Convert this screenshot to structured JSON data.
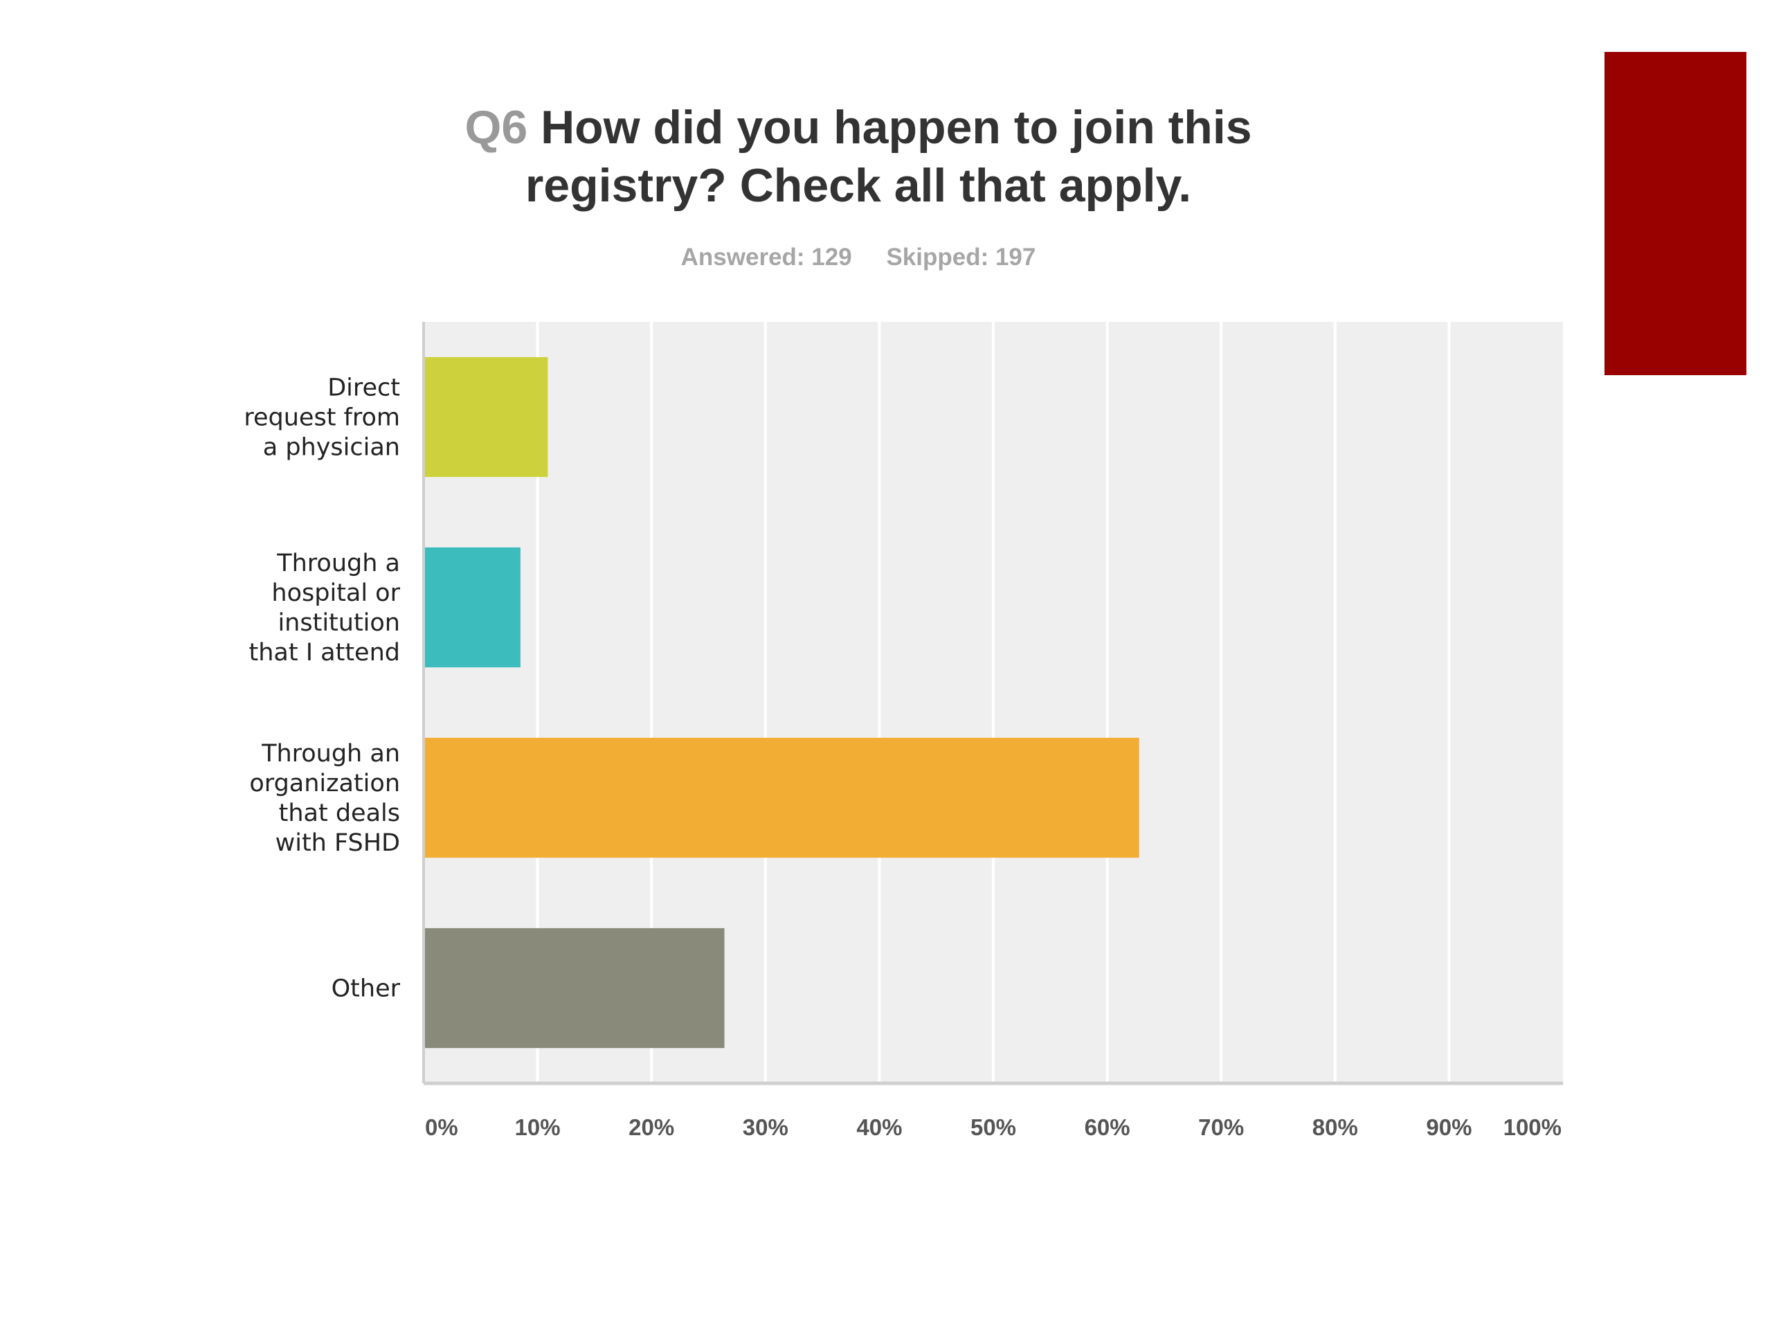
{
  "accent_color": "#990000",
  "chart_data": {
    "type": "bar",
    "orientation": "horizontal",
    "title_prefix": "Q6",
    "title_lines": [
      "How did you happen to join this",
      "registry? Check all that apply."
    ],
    "answered": "Answered: 129",
    "skipped": "Skipped: 197",
    "categories": [
      [
        "Direct",
        "request from",
        "a physician"
      ],
      [
        "Through a",
        "hospital or",
        "institution",
        "that I attend"
      ],
      [
        "Through an",
        "organization",
        "that deals",
        "with FSHD"
      ],
      [
        "Other"
      ]
    ],
    "values": [
      10.9,
      8.5,
      62.8,
      26.4
    ],
    "colors": [
      "#cdd23c",
      "#3dbcbd",
      "#f2ad34",
      "#8a8a7a"
    ],
    "xlim": [
      0,
      100
    ],
    "xticks": [
      0,
      10,
      20,
      30,
      40,
      50,
      60,
      70,
      80,
      90,
      100
    ],
    "xtick_labels": [
      "0%",
      "10%",
      "20%",
      "30%",
      "40%",
      "50%",
      "60%",
      "70%",
      "80%",
      "90%",
      "100%"
    ],
    "grid": true,
    "plot_background": "#efefef",
    "grid_color": "#ffffff"
  }
}
